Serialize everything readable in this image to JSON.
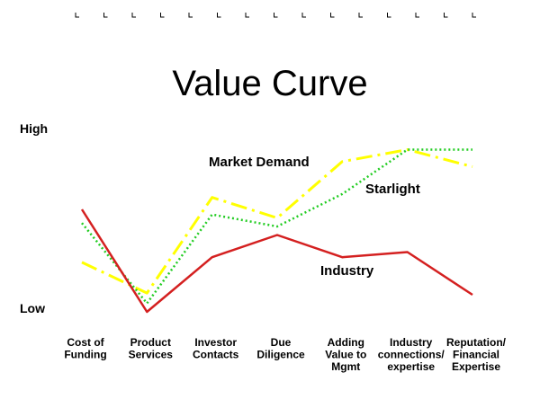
{
  "chart_data": {
    "type": "line",
    "title": "Value Curve",
    "xlabel": "",
    "ylabel": "",
    "y_axis_labels": {
      "high": "High",
      "low": "Low"
    },
    "ylim": [
      0,
      10
    ],
    "categories": [
      "Cost of Funding",
      "Product Services",
      "Investor Contacts",
      "Due Diligence",
      "Adding Value to Mgmt",
      "Industry connections/ expertise",
      "Reputation/ Financial Expertise"
    ],
    "category_lines": [
      [
        "Cost of",
        "Funding"
      ],
      [
        "Product",
        "Services"
      ],
      [
        "Investor",
        "Contacts"
      ],
      [
        "Due",
        "Diligence"
      ],
      [
        "Adding",
        "Value to",
        "Mgmt"
      ],
      [
        "Industry",
        "connections/",
        "expertise"
      ],
      [
        "Reputation/",
        "Financial",
        "Expertise"
      ]
    ],
    "series": [
      {
        "name": "Industry",
        "color": "#d42020",
        "style": "solid",
        "values": [
          6.0,
          0.0,
          3.2,
          4.5,
          3.2,
          3.5,
          1.0
        ]
      },
      {
        "name": "Market Demand",
        "color": "#ffff00",
        "style": "dashdot",
        "values": [
          2.9,
          1.1,
          6.7,
          5.5,
          8.8,
          9.5,
          8.5
        ]
      },
      {
        "name": "Starlight",
        "color": "#22cc22",
        "style": "dotted",
        "values": [
          5.2,
          0.5,
          5.7,
          5.0,
          6.9,
          9.5,
          9.5
        ]
      }
    ],
    "grid": false,
    "legend": "inline labels"
  }
}
